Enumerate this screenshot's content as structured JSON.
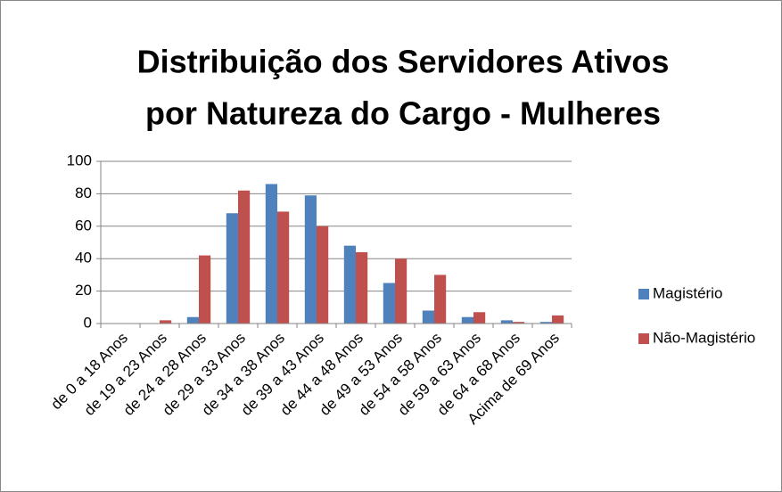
{
  "chart_data": {
    "type": "bar",
    "title": [
      "Distribuição dos Servidores Ativos",
      "por Natureza do Cargo - Mulheres"
    ],
    "categories": [
      "de 0 a 18 Anos",
      "de 19 a 23 Anos",
      "de 24 a 28 Anos",
      "de 29 a 33 Anos",
      "de 34 a 38 Anos",
      "de 39 a 43 Anos",
      "de 44 a 48 Anos",
      "de 49 a 53 Anos",
      "de 54 a 58 Anos",
      "de 59 a 63 Anos",
      "de 64 a 68 Anos",
      "Acima de 69 Anos"
    ],
    "series": [
      {
        "name": "Magistério",
        "color": "#4f81bd",
        "values": [
          0,
          0,
          4,
          68,
          86,
          79,
          48,
          25,
          8,
          4,
          2,
          1
        ]
      },
      {
        "name": "Não-Magistério",
        "color": "#c0504d",
        "values": [
          0,
          2,
          42,
          82,
          69,
          60,
          44,
          40,
          30,
          7,
          1,
          5
        ]
      }
    ],
    "ylim": [
      0,
      100
    ],
    "yticks": [
      0,
      20,
      40,
      60,
      80,
      100
    ],
    "grid": true,
    "legend": "right"
  }
}
